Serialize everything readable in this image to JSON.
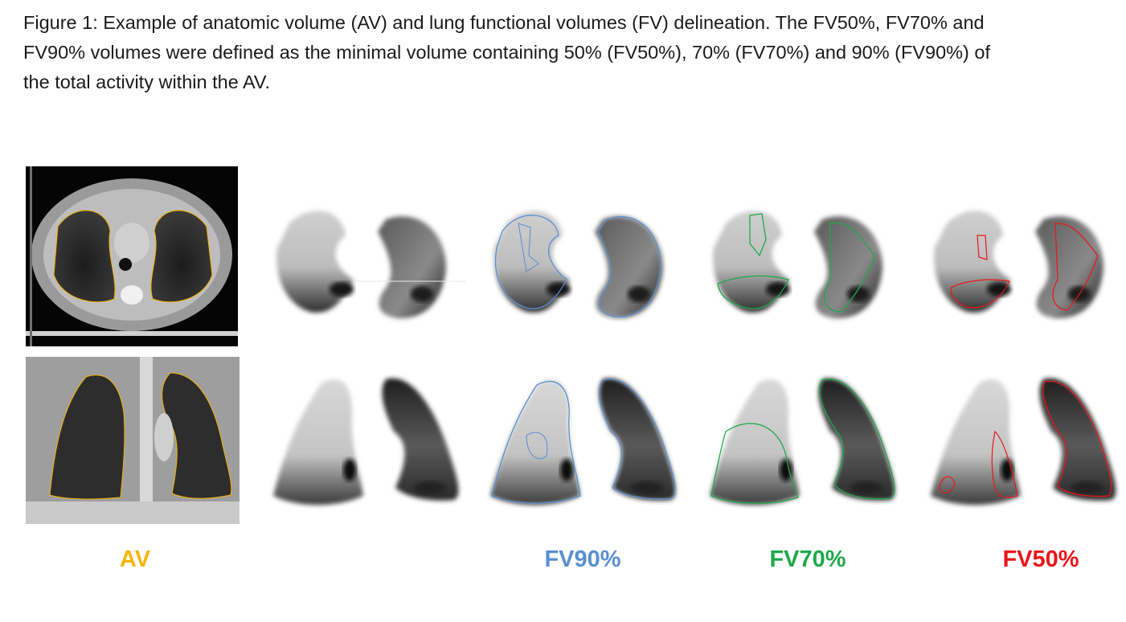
{
  "figure": {
    "caption": "Figure 1: Example of anatomic volume (AV) and lung functional volumes (FV) delineation. The FV50%, FV70% and FV90% volumes were defined as the minimal volume containing 50% (FV50%), 70% (FV70%) and 90% (FV90%) of the total activity within the AV."
  },
  "labels": {
    "av": "AV",
    "fv90": "FV90%",
    "fv70": "FV70%",
    "fv50": "FV50%"
  },
  "colors": {
    "av": "#f5b400",
    "fv90": "#5b8fcf",
    "fv70": "#1fa84a",
    "fv50": "#e8161b"
  }
}
